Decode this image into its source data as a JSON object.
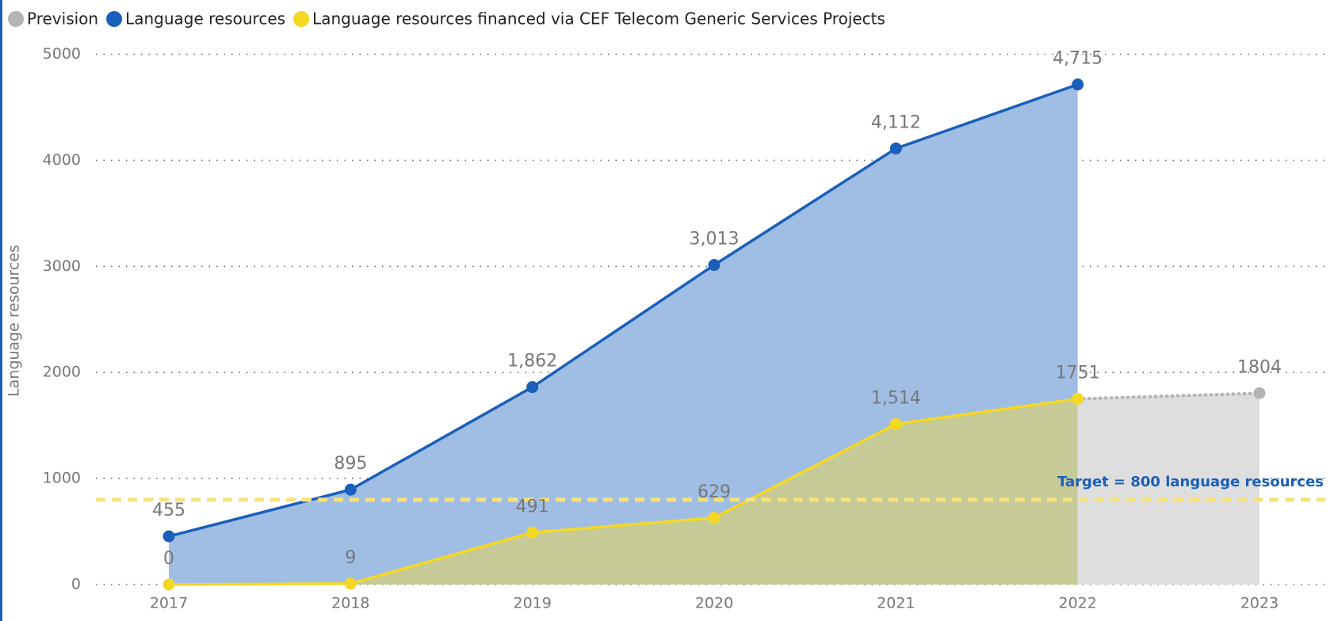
{
  "chart_data": {
    "type": "area",
    "y_axis_label": "Language resources",
    "categories": [
      "2017",
      "2018",
      "2019",
      "2020",
      "2021",
      "2022",
      "2023"
    ],
    "ylim": [
      0,
      5000
    ],
    "yticks": [
      0,
      1000,
      2000,
      3000,
      4000,
      5000
    ],
    "grid": true,
    "legend": "top-left",
    "series": [
      {
        "name": "Prevision",
        "color": "#b4b4b4",
        "fill": "#dedede",
        "style": "dotted",
        "values": [
          null,
          null,
          null,
          null,
          null,
          1751,
          1804
        ],
        "value_labels": [
          null,
          null,
          null,
          null,
          null,
          null,
          "1804"
        ]
      },
      {
        "name": "Language resources",
        "color": "#1a5fb9",
        "fill": "#a0bee4",
        "style": "solid",
        "values": [
          455,
          895,
          1862,
          3013,
          4112,
          4715,
          null
        ],
        "value_labels": [
          "455",
          "895",
          "1,862",
          "3,013",
          "4,112",
          "4,715",
          null
        ]
      },
      {
        "name": "Language resources financed via CEF Telecom Generic Services Projects",
        "color": "#f5d824",
        "fill": "#c6ca96",
        "style": "solid",
        "values": [
          0,
          9,
          491,
          629,
          1514,
          1751,
          null
        ],
        "value_labels": [
          "0",
          "9",
          "491",
          "629",
          "1,514",
          "1751",
          null
        ]
      }
    ],
    "target": {
      "value": 800,
      "label": "Target = 800 language resources",
      "color": "#f7e27a",
      "label_color": "#1a5fb9"
    }
  }
}
